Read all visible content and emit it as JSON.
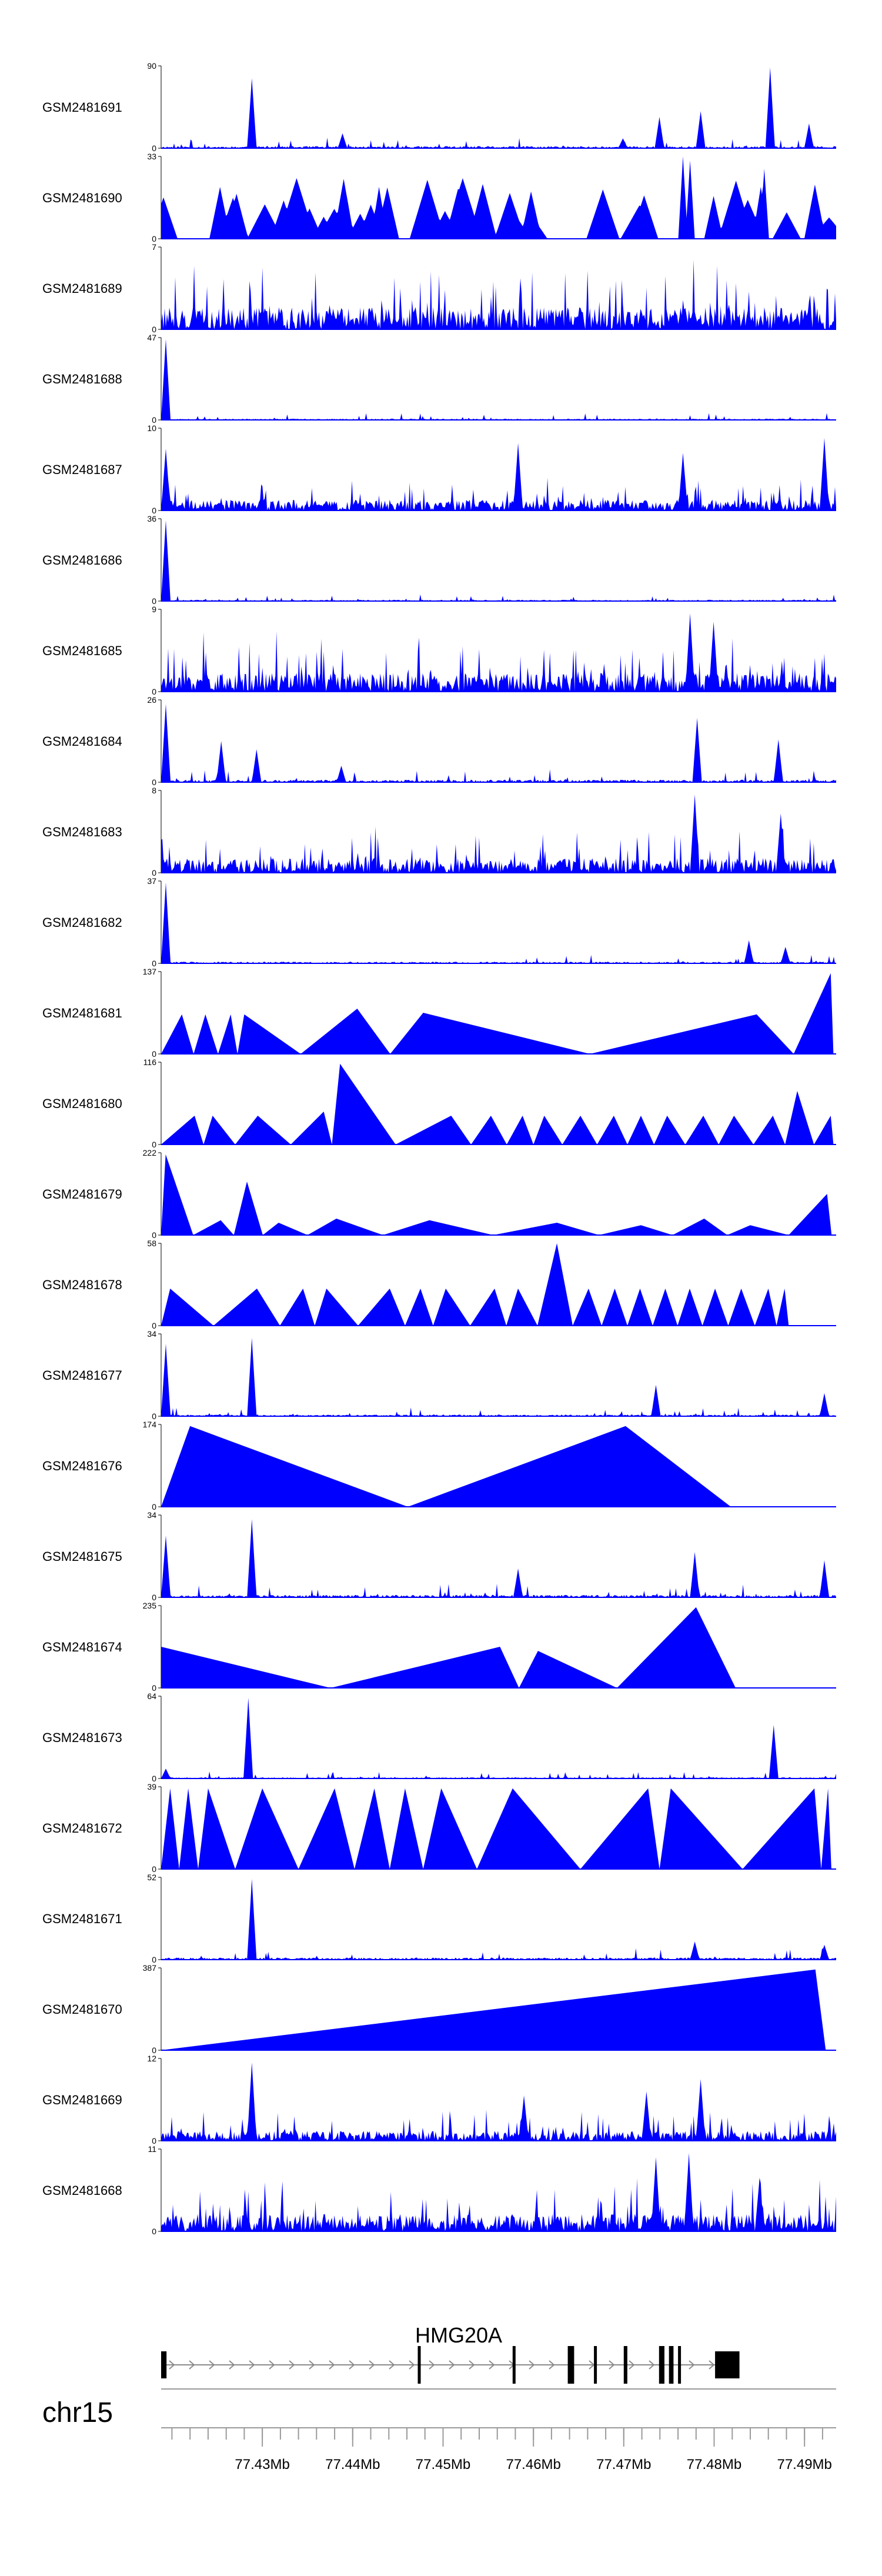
{
  "chart_data": {
    "type": "area",
    "title": "",
    "chromosome": "chr15",
    "xlim_mb": [
      77.4188,
      77.4935
    ],
    "x_ticks_mb": [
      77.43,
      77.44,
      77.45,
      77.46,
      77.47,
      77.48,
      77.49
    ],
    "x_tick_labels": [
      "77.43Mb",
      "77.44Mb",
      "77.45Mb",
      "77.46Mb",
      "77.47Mb",
      "77.48Mb",
      "77.49Mb"
    ],
    "color": "#0000ff",
    "tracks": [
      {
        "name": "GSM2481691",
        "ymax_label": "90",
        "ymax": 90,
        "profile": "dense",
        "seed": 11,
        "noise": 0.05,
        "peaks": [
          [
            77.4288,
            0.85
          ],
          [
            77.4389,
            0.18
          ],
          [
            77.4699,
            0.12
          ],
          [
            77.4739,
            0.38
          ],
          [
            77.4785,
            0.45
          ],
          [
            77.4862,
            0.98
          ],
          [
            77.4905,
            0.3
          ]
        ]
      },
      {
        "name": "GSM2481690",
        "ymax_label": "33",
        "ymax": 33,
        "profile": "sparse",
        "seed": 12,
        "count": 36,
        "hmin": 0.25,
        "hmax": 0.75,
        "peaks": [
          [
            77.4765,
            1.0
          ],
          [
            77.4773,
            0.95
          ],
          [
            77.4855,
            0.85
          ]
        ]
      },
      {
        "name": "GSM2481689",
        "ymax_label": "7",
        "ymax": 7,
        "profile": "noisy",
        "seed": 13,
        "noise": 0.45,
        "peaks": []
      },
      {
        "name": "GSM2481688",
        "ymax_label": "47",
        "ymax": 47,
        "profile": "dense",
        "seed": 14,
        "noise": 0.03,
        "peaks": [
          [
            77.4193,
            0.98
          ]
        ]
      },
      {
        "name": "GSM2481687",
        "ymax_label": "10",
        "ymax": 10,
        "profile": "noisy",
        "seed": 15,
        "noise": 0.22,
        "peaks": [
          [
            77.4193,
            0.75
          ],
          [
            77.4583,
            0.82
          ],
          [
            77.4765,
            0.7
          ],
          [
            77.4922,
            0.88
          ]
        ]
      },
      {
        "name": "GSM2481686",
        "ymax_label": "36",
        "ymax": 36,
        "profile": "dense",
        "seed": 16,
        "noise": 0.03,
        "peaks": [
          [
            77.4193,
            0.98
          ]
        ]
      },
      {
        "name": "GSM2481685",
        "ymax_label": "9",
        "ymax": 9,
        "profile": "noisy",
        "seed": 17,
        "noise": 0.38,
        "peaks": [
          [
            77.4773,
            0.95
          ],
          [
            77.4799,
            0.85
          ]
        ]
      },
      {
        "name": "GSM2481684",
        "ymax_label": "26",
        "ymax": 26,
        "profile": "dense",
        "seed": 18,
        "noise": 0.06,
        "peaks": [
          [
            77.4193,
            0.95
          ],
          [
            77.4254,
            0.5
          ],
          [
            77.4294,
            0.4
          ],
          [
            77.4387,
            0.2
          ],
          [
            77.4781,
            0.78
          ],
          [
            77.4871,
            0.52
          ]
        ]
      },
      {
        "name": "GSM2481683",
        "ymax_label": "8",
        "ymax": 8,
        "profile": "noisy",
        "seed": 19,
        "noise": 0.3,
        "peaks": [
          [
            77.4779,
            0.95
          ],
          [
            77.4874,
            0.72
          ]
        ]
      },
      {
        "name": "GSM2481682",
        "ymax_label": "37",
        "ymax": 37,
        "profile": "dense",
        "seed": 20,
        "noise": 0.04,
        "peaks": [
          [
            77.4193,
            0.98
          ],
          [
            77.4839,
            0.28
          ],
          [
            77.4879,
            0.2
          ]
        ]
      },
      {
        "name": "GSM2481681",
        "ymax_label": "137",
        "ymax": 137,
        "profile": "tri",
        "seed": 21,
        "peaks": [
          [
            77.4211,
            0.48
          ],
          [
            77.4237,
            0.48
          ],
          [
            77.4265,
            0.48
          ],
          [
            77.428,
            0.48
          ],
          [
            77.4405,
            0.55
          ],
          [
            77.4478,
            0.5
          ],
          [
            77.4847,
            0.48
          ],
          [
            77.4929,
            0.98
          ]
        ]
      },
      {
        "name": "GSM2481680",
        "ymax_label": "116",
        "ymax": 116,
        "profile": "tri",
        "seed": 22,
        "peaks": [
          [
            77.4225,
            0.35
          ],
          [
            77.4245,
            0.35
          ],
          [
            77.4295,
            0.35
          ],
          [
            77.4368,
            0.4
          ],
          [
            77.4386,
            0.98
          ],
          [
            77.4509,
            0.35
          ],
          [
            77.4553,
            0.35
          ],
          [
            77.4588,
            0.35
          ],
          [
            77.4612,
            0.35
          ],
          [
            77.4652,
            0.35
          ],
          [
            77.4689,
            0.35
          ],
          [
            77.4719,
            0.35
          ],
          [
            77.4748,
            0.35
          ],
          [
            77.4788,
            0.35
          ],
          [
            77.4822,
            0.35
          ],
          [
            77.4865,
            0.35
          ],
          [
            77.4892,
            0.65
          ],
          [
            77.4929,
            0.35
          ]
        ]
      },
      {
        "name": "GSM2481679",
        "ymax_label": "222",
        "ymax": 222,
        "profile": "tri",
        "seed": 23,
        "peaks": [
          [
            77.4193,
            0.98
          ],
          [
            77.4254,
            0.18
          ],
          [
            77.4283,
            0.65
          ],
          [
            77.4318,
            0.15
          ],
          [
            77.4382,
            0.2
          ],
          [
            77.4485,
            0.18
          ],
          [
            77.4626,
            0.15
          ],
          [
            77.4719,
            0.12
          ],
          [
            77.4789,
            0.2
          ],
          [
            77.484,
            0.12
          ],
          [
            77.4925,
            0.5
          ]
        ]
      },
      {
        "name": "GSM2481678",
        "ymax_label": "58",
        "ymax": 58,
        "profile": "tri",
        "seed": 24,
        "peaks": [
          [
            77.4198,
            0.45
          ],
          [
            77.4294,
            0.45
          ],
          [
            77.4345,
            0.45
          ],
          [
            77.4371,
            0.45
          ],
          [
            77.4441,
            0.45
          ],
          [
            77.4475,
            0.45
          ],
          [
            77.4503,
            0.45
          ],
          [
            77.4557,
            0.45
          ],
          [
            77.4583,
            0.45
          ],
          [
            77.4626,
            1.0
          ],
          [
            77.4661,
            0.45
          ],
          [
            77.469,
            0.45
          ],
          [
            77.4718,
            0.45
          ],
          [
            77.4746,
            0.45
          ],
          [
            77.4773,
            0.45
          ],
          [
            77.4801,
            0.45
          ],
          [
            77.483,
            0.45
          ],
          [
            77.486,
            0.45
          ],
          [
            77.4878,
            0.45
          ]
        ]
      },
      {
        "name": "GSM2481677",
        "ymax_label": "34",
        "ymax": 34,
        "profile": "dense",
        "seed": 25,
        "noise": 0.04,
        "peaks": [
          [
            77.4193,
            0.88
          ],
          [
            77.4288,
            0.95
          ],
          [
            77.4735,
            0.38
          ],
          [
            77.4922,
            0.28
          ]
        ]
      },
      {
        "name": "GSM2481676",
        "ymax_label": "174",
        "ymax": 174,
        "profile": "tri",
        "seed": 26,
        "peaks": [
          [
            77.422,
            0.98
          ],
          [
            77.4702,
            0.98
          ]
        ]
      },
      {
        "name": "GSM2481675",
        "ymax_label": "34",
        "ymax": 34,
        "profile": "dense",
        "seed": 27,
        "noise": 0.06,
        "peaks": [
          [
            77.4193,
            0.75
          ],
          [
            77.4288,
            0.95
          ],
          [
            77.4583,
            0.35
          ],
          [
            77.4779,
            0.55
          ],
          [
            77.4922,
            0.45
          ]
        ]
      },
      {
        "name": "GSM2481674",
        "ymax_label": "235",
        "ymax": 235,
        "profile": "tri",
        "seed": 27,
        "peaks": [
          [
            77.4188,
            0.5
          ],
          [
            77.4563,
            0.5
          ],
          [
            77.4605,
            0.45
          ],
          [
            77.478,
            0.98
          ]
        ]
      },
      {
        "name": "GSM2481673",
        "ymax_label": "64",
        "ymax": 64,
        "profile": "dense",
        "seed": 28,
        "noise": 0.03,
        "peaks": [
          [
            77.4193,
            0.12
          ],
          [
            77.4285,
            0.98
          ],
          [
            77.4866,
            0.65
          ]
        ]
      },
      {
        "name": "GSM2481672",
        "ymax_label": "39",
        "ymax": 39,
        "profile": "tri",
        "seed": 29,
        "peaks": [
          [
            77.4198,
            0.98
          ],
          [
            77.4218,
            0.98
          ],
          [
            77.424,
            0.98
          ],
          [
            77.43,
            0.98
          ],
          [
            77.438,
            0.98
          ],
          [
            77.4424,
            0.98
          ],
          [
            77.4458,
            0.98
          ],
          [
            77.4498,
            0.98
          ],
          [
            77.4577,
            0.98
          ],
          [
            77.4727,
            0.98
          ],
          [
            77.4752,
            0.98
          ],
          [
            77.4911,
            0.98
          ],
          [
            77.4926,
            0.98
          ]
        ]
      },
      {
        "name": "GSM2481671",
        "ymax_label": "52",
        "ymax": 52,
        "profile": "dense",
        "seed": 30,
        "noise": 0.05,
        "peaks": [
          [
            77.4289,
            0.98
          ],
          [
            77.4779,
            0.22
          ],
          [
            77.4922,
            0.18
          ]
        ]
      },
      {
        "name": "GSM2481670",
        "ymax_label": "387",
        "ymax": 387,
        "profile": "tri",
        "seed": 31,
        "peaks": [
          [
            77.4912,
            0.98
          ]
        ]
      },
      {
        "name": "GSM2481669",
        "ymax_label": "12",
        "ymax": 12,
        "profile": "noisy",
        "seed": 32,
        "noise": 0.2,
        "peaks": [
          [
            77.4288,
            0.95
          ],
          [
            77.459,
            0.55
          ],
          [
            77.4725,
            0.6
          ],
          [
            77.4785,
            0.75
          ]
        ]
      },
      {
        "name": "GSM2481668",
        "ymax_label": "11",
        "ymax": 11,
        "profile": "noisy",
        "seed": 33,
        "noise": 0.35,
        "peaks": [
          [
            77.4735,
            0.9
          ],
          [
            77.4772,
            0.95
          ],
          [
            77.485,
            0.65
          ]
        ]
      }
    ],
    "gene": {
      "name": "HMG20A",
      "strand": "+",
      "start_mb": 77.4188,
      "end_mb": 77.4828,
      "exons_mb": [
        [
          77.4188,
          77.4194
        ],
        [
          77.4472,
          77.4475
        ],
        [
          77.4577,
          77.458
        ],
        [
          77.4638,
          77.4645
        ],
        [
          77.4667,
          77.467
        ],
        [
          77.47,
          77.4704
        ],
        [
          77.4739,
          77.4745
        ],
        [
          77.475,
          77.4755
        ],
        [
          77.476,
          77.4763
        ],
        [
          77.4801,
          77.4828
        ]
      ]
    }
  }
}
